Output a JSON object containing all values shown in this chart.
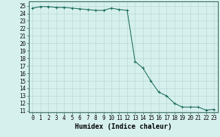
{
  "xlabel": "Humidex (Indice chaleur)",
  "x_values": [
    0,
    1,
    2,
    3,
    4,
    5,
    6,
    7,
    8,
    9,
    10,
    11,
    12,
    13,
    14,
    15,
    16,
    17,
    18,
    19,
    20,
    21,
    22,
    23
  ],
  "y_values": [
    24.7,
    24.9,
    24.9,
    24.8,
    24.8,
    24.7,
    24.6,
    24.5,
    24.4,
    24.4,
    24.7,
    24.5,
    24.4,
    17.6,
    16.7,
    15.0,
    13.5,
    13.0,
    12.0,
    11.5,
    11.5,
    11.5,
    11.1,
    11.2
  ],
  "line_color": "#1a6b5a",
  "marker": "+",
  "markersize": 3,
  "linewidth": 0.8,
  "markeredgewidth": 0.8,
  "ylim": [
    10.8,
    25.6
  ],
  "xlim": [
    -0.5,
    23.5
  ],
  "yticks": [
    11,
    12,
    13,
    14,
    15,
    16,
    17,
    18,
    19,
    20,
    21,
    22,
    23,
    24,
    25
  ],
  "xticks": [
    0,
    1,
    2,
    3,
    4,
    5,
    6,
    7,
    8,
    9,
    10,
    11,
    12,
    13,
    14,
    15,
    16,
    17,
    18,
    19,
    20,
    21,
    22,
    23
  ],
  "bg_color": "#d6f0ee",
  "grid_color": "#b8d8d4",
  "tick_label_fontsize": 5.5,
  "xlabel_fontsize": 7.0
}
